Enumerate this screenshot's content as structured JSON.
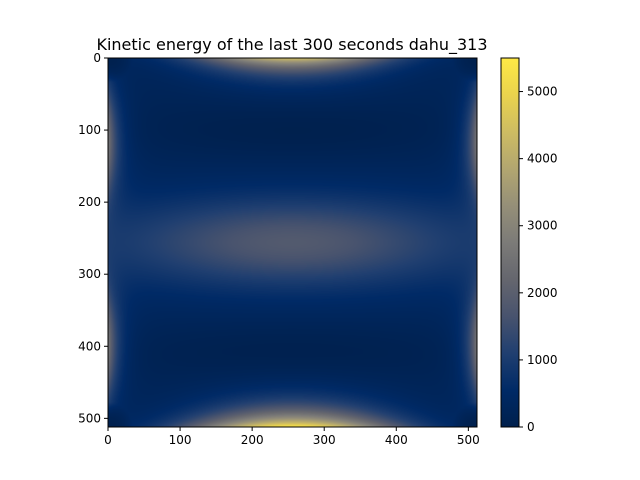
{
  "chart_data": {
    "type": "heatmap",
    "title": "Kinetic energy of the last 300 seconds dahu_313",
    "xlabel": "",
    "ylabel": "",
    "grid": false,
    "colormap": "cividis",
    "x_range": [
      0,
      512
    ],
    "y_range": [
      512,
      0
    ],
    "x_ticks": [
      0,
      100,
      200,
      300,
      400,
      500
    ],
    "y_ticks": [
      0,
      100,
      200,
      300,
      400,
      500
    ],
    "colorbar": {
      "range": [
        0,
        5500
      ],
      "ticks": [
        0,
        1000,
        2000,
        3000,
        4000,
        5000
      ]
    },
    "field_description": "Cavity-flow style kinetic energy field: highest near bottom edge center, high near top edge center, moderate near left/right edge middles and central horizontal band; low in corners and two horizontal bands near y~100 and y~400.",
    "samples": [
      {
        "x": 256,
        "y": 500,
        "value": 5400
      },
      {
        "x": 256,
        "y": 8,
        "value": 4300
      },
      {
        "x": 8,
        "y": 120,
        "value": 2700
      },
      {
        "x": 8,
        "y": 400,
        "value": 2600
      },
      {
        "x": 504,
        "y": 120,
        "value": 2600
      },
      {
        "x": 504,
        "y": 400,
        "value": 2600
      },
      {
        "x": 256,
        "y": 256,
        "value": 1300
      },
      {
        "x": 256,
        "y": 100,
        "value": 150
      },
      {
        "x": 256,
        "y": 410,
        "value": 100
      },
      {
        "x": 8,
        "y": 256,
        "value": 200
      },
      {
        "x": 504,
        "y": 256,
        "value": 200
      },
      {
        "x": 0,
        "y": 0,
        "value": 0
      }
    ]
  }
}
